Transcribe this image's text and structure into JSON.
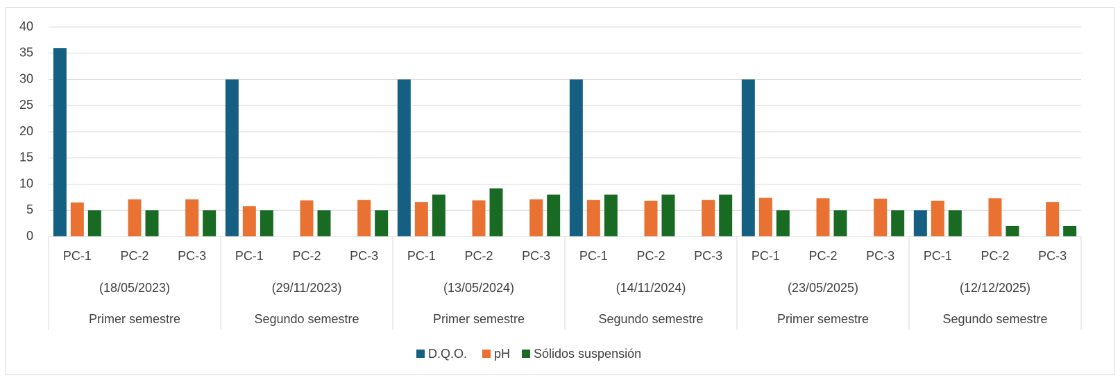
{
  "chart_data": {
    "type": "bar",
    "categories": [
      "PC-1",
      "PC-2",
      "PC-3",
      "PC-1",
      "PC-2",
      "PC-3",
      "PC-1",
      "PC-2",
      "PC-3",
      "PC-1",
      "PC-2",
      "PC-3",
      "PC-1",
      "PC-2",
      "PC-3",
      "PC-1",
      "PC-2",
      "PC-3"
    ],
    "groups": [
      {
        "label": "(18/05/2023)",
        "period": "Primer semestre"
      },
      {
        "label": "(29/11/2023)",
        "period": "Segundo semestre"
      },
      {
        "label": "(13/05/2024)",
        "period": "Primer semestre"
      },
      {
        "label": "(14/11/2024)",
        "period": "Segundo semestre"
      },
      {
        "label": "(23/05/2025)",
        "period": "Primer semestre"
      },
      {
        "label": "(12/12/2025)",
        "period": "Segundo semestre"
      }
    ],
    "series": [
      {
        "name": "D.Q.O.",
        "color": "#156082",
        "values": [
          36,
          null,
          null,
          30,
          null,
          null,
          30,
          null,
          null,
          30,
          null,
          null,
          30,
          null,
          null,
          5,
          null,
          null
        ]
      },
      {
        "name": "pH",
        "color": "#e97132",
        "values": [
          6.5,
          7.1,
          7.1,
          5.8,
          6.9,
          7.0,
          6.6,
          6.9,
          7.1,
          7.0,
          6.8,
          7.0,
          7.4,
          7.3,
          7.2,
          6.8,
          7.3,
          6.6
        ]
      },
      {
        "name": "Sólidos suspensión",
        "color": "#196b24",
        "values": [
          5,
          5,
          5,
          5,
          5,
          5,
          8,
          9.2,
          8,
          8,
          8,
          8,
          5,
          5,
          5,
          5,
          2,
          2
        ]
      }
    ],
    "ylim": [
      0,
      40
    ],
    "yticks": [
      0,
      5,
      10,
      15,
      20,
      25,
      30,
      35,
      40
    ],
    "grid": true,
    "legend": "bottom"
  }
}
